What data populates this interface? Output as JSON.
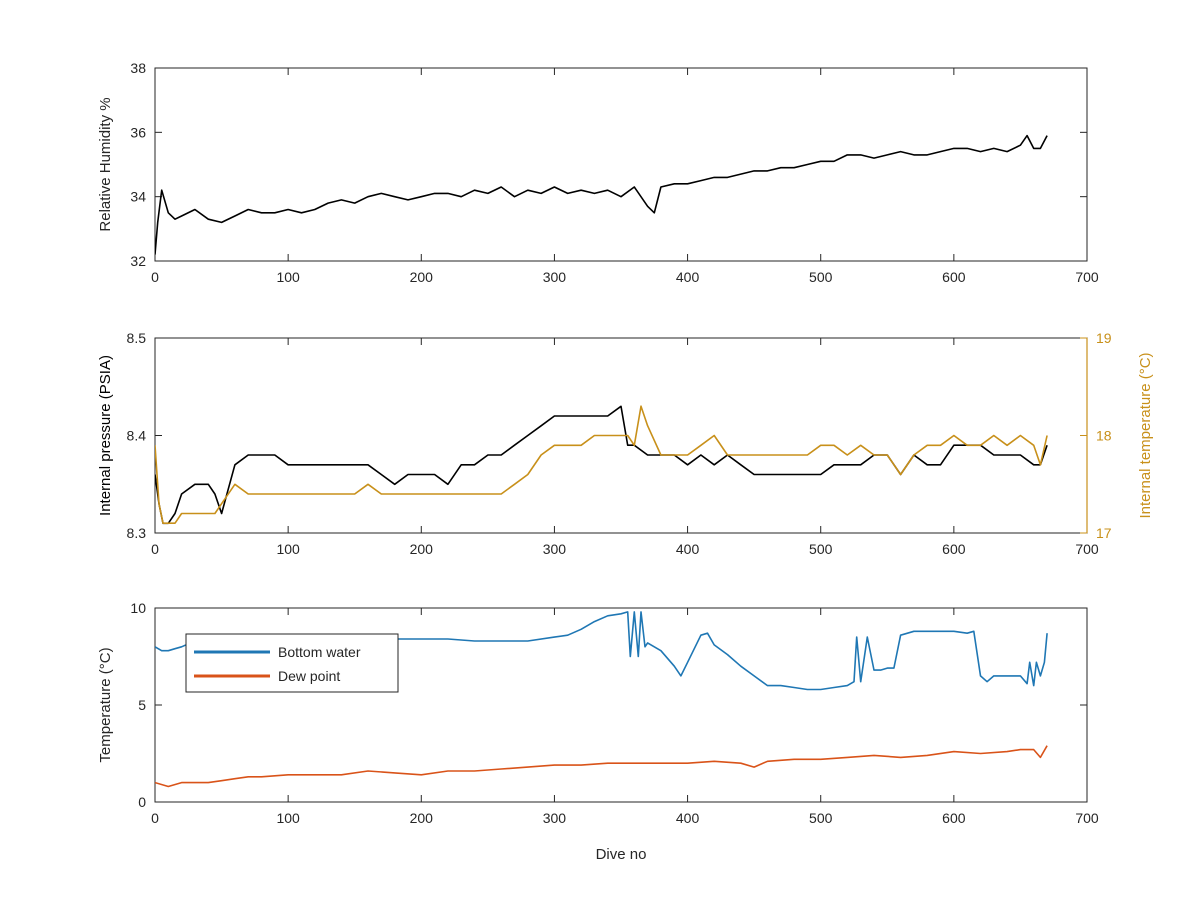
{
  "chart_data": [
    {
      "type": "line",
      "panel": "top",
      "xlabel": "",
      "ylabel": "Relative Humidity %",
      "xlim": [
        0,
        700
      ],
      "ylim": [
        32,
        38
      ],
      "xticks": [
        0,
        100,
        200,
        300,
        400,
        500,
        600,
        700
      ],
      "yticks": [
        32,
        34,
        36,
        38
      ],
      "series": [
        {
          "name": "",
          "color": "#000000",
          "x": [
            0,
            2,
            5,
            10,
            15,
            20,
            30,
            40,
            50,
            60,
            70,
            80,
            90,
            100,
            110,
            120,
            130,
            140,
            150,
            160,
            170,
            180,
            190,
            200,
            210,
            220,
            230,
            240,
            250,
            260,
            270,
            280,
            290,
            300,
            310,
            320,
            330,
            340,
            350,
            360,
            370,
            375,
            380,
            390,
            400,
            410,
            420,
            430,
            440,
            450,
            460,
            470,
            480,
            490,
            500,
            510,
            520,
            530,
            540,
            550,
            560,
            570,
            580,
            590,
            600,
            610,
            620,
            630,
            640,
            650,
            655,
            660,
            665,
            670
          ],
          "y": [
            32.2,
            33.2,
            34.2,
            33.5,
            33.3,
            33.4,
            33.6,
            33.3,
            33.2,
            33.4,
            33.6,
            33.5,
            33.5,
            33.6,
            33.5,
            33.6,
            33.8,
            33.9,
            33.8,
            34.0,
            34.1,
            34.0,
            33.9,
            34.0,
            34.1,
            34.1,
            34.0,
            34.2,
            34.1,
            34.3,
            34.0,
            34.2,
            34.1,
            34.3,
            34.1,
            34.2,
            34.1,
            34.2,
            34.0,
            34.3,
            33.7,
            33.5,
            34.3,
            34.4,
            34.4,
            34.5,
            34.6,
            34.6,
            34.7,
            34.8,
            34.8,
            34.9,
            34.9,
            35.0,
            35.1,
            35.1,
            35.3,
            35.3,
            35.2,
            35.3,
            35.4,
            35.3,
            35.3,
            35.4,
            35.5,
            35.5,
            35.4,
            35.5,
            35.4,
            35.6,
            35.9,
            35.5,
            35.5,
            35.9
          ]
        }
      ]
    },
    {
      "type": "line",
      "panel": "middle",
      "xlabel": "",
      "ylabel": "Internal pressure (PSIA)",
      "y2label": "Internal temperature (°C)",
      "xlim": [
        0,
        700
      ],
      "ylim": [
        8.3,
        8.5
      ],
      "y2lim": [
        17,
        19
      ],
      "xticks": [
        0,
        100,
        200,
        300,
        400,
        500,
        600,
        700
      ],
      "yticks": [
        "8.3",
        "8.4",
        "8.5"
      ],
      "y2ticks": [
        "17",
        "18",
        "19"
      ],
      "series": [
        {
          "name": "",
          "axis": "left",
          "color": "#000000",
          "x": [
            0,
            3,
            6,
            10,
            15,
            20,
            30,
            40,
            45,
            50,
            60,
            70,
            80,
            90,
            100,
            110,
            120,
            130,
            140,
            150,
            160,
            170,
            180,
            190,
            200,
            210,
            220,
            230,
            240,
            250,
            260,
            270,
            280,
            290,
            300,
            310,
            320,
            330,
            340,
            350,
            355,
            360,
            370,
            380,
            390,
            400,
            410,
            420,
            430,
            440,
            450,
            460,
            470,
            480,
            490,
            500,
            510,
            520,
            530,
            540,
            550,
            560,
            570,
            580,
            590,
            600,
            610,
            620,
            630,
            640,
            650,
            660,
            665,
            670
          ],
          "y": [
            8.36,
            8.33,
            8.31,
            8.31,
            8.32,
            8.34,
            8.35,
            8.35,
            8.34,
            8.32,
            8.37,
            8.38,
            8.38,
            8.38,
            8.37,
            8.37,
            8.37,
            8.37,
            8.37,
            8.37,
            8.37,
            8.36,
            8.35,
            8.36,
            8.36,
            8.36,
            8.35,
            8.37,
            8.37,
            8.38,
            8.38,
            8.39,
            8.4,
            8.41,
            8.42,
            8.42,
            8.42,
            8.42,
            8.42,
            8.43,
            8.39,
            8.39,
            8.38,
            8.38,
            8.38,
            8.37,
            8.38,
            8.37,
            8.38,
            8.37,
            8.36,
            8.36,
            8.36,
            8.36,
            8.36,
            8.36,
            8.37,
            8.37,
            8.37,
            8.38,
            8.38,
            8.36,
            8.38,
            8.37,
            8.37,
            8.39,
            8.39,
            8.39,
            8.38,
            8.38,
            8.38,
            8.37,
            8.37,
            8.39
          ]
        },
        {
          "name": "",
          "axis": "right",
          "color": "#c8901a",
          "x": [
            0,
            3,
            6,
            10,
            15,
            20,
            30,
            40,
            45,
            50,
            60,
            70,
            80,
            90,
            100,
            110,
            120,
            130,
            140,
            150,
            160,
            170,
            180,
            190,
            200,
            210,
            220,
            230,
            240,
            250,
            260,
            270,
            280,
            290,
            300,
            310,
            320,
            330,
            340,
            350,
            355,
            360,
            365,
            370,
            380,
            390,
            400,
            410,
            420,
            430,
            440,
            450,
            460,
            470,
            480,
            490,
            500,
            510,
            520,
            530,
            540,
            550,
            560,
            570,
            580,
            590,
            600,
            610,
            620,
            630,
            640,
            650,
            660,
            665,
            670
          ],
          "y": [
            17.9,
            17.3,
            17.1,
            17.1,
            17.1,
            17.2,
            17.2,
            17.2,
            17.2,
            17.3,
            17.5,
            17.4,
            17.4,
            17.4,
            17.4,
            17.4,
            17.4,
            17.4,
            17.4,
            17.4,
            17.5,
            17.4,
            17.4,
            17.4,
            17.4,
            17.4,
            17.4,
            17.4,
            17.4,
            17.4,
            17.4,
            17.5,
            17.6,
            17.8,
            17.9,
            17.9,
            17.9,
            18.0,
            18.0,
            18.0,
            18.0,
            17.9,
            18.3,
            18.1,
            17.8,
            17.8,
            17.8,
            17.9,
            18.0,
            17.8,
            17.8,
            17.8,
            17.8,
            17.8,
            17.8,
            17.8,
            17.9,
            17.9,
            17.8,
            17.9,
            17.8,
            17.8,
            17.6,
            17.8,
            17.9,
            17.9,
            18.0,
            17.9,
            17.9,
            18.0,
            17.9,
            18.0,
            17.9,
            17.7,
            18.0
          ]
        }
      ]
    },
    {
      "type": "line",
      "panel": "bottom",
      "xlabel": "Dive no",
      "ylabel": "Temperature (°C)",
      "xlim": [
        0,
        700
      ],
      "ylim": [
        0,
        10
      ],
      "xticks": [
        0,
        100,
        200,
        300,
        400,
        500,
        600,
        700
      ],
      "yticks": [
        0,
        5,
        10
      ],
      "legend": "top-left",
      "series": [
        {
          "name": "Bottom water",
          "color": "#1f77b4",
          "x": [
            0,
            5,
            10,
            15,
            20,
            30,
            40,
            50,
            60,
            70,
            80,
            100,
            120,
            140,
            160,
            180,
            200,
            220,
            240,
            260,
            280,
            300,
            310,
            320,
            330,
            340,
            350,
            355,
            357,
            360,
            363,
            365,
            368,
            370,
            380,
            390,
            395,
            400,
            410,
            415,
            420,
            430,
            440,
            450,
            460,
            470,
            480,
            490,
            500,
            510,
            520,
            525,
            527,
            530,
            535,
            540,
            545,
            550,
            555,
            560,
            570,
            580,
            590,
            600,
            610,
            615,
            620,
            625,
            630,
            640,
            650,
            655,
            657,
            660,
            662,
            665,
            668,
            670
          ],
          "y": [
            8.0,
            7.8,
            7.8,
            7.9,
            8.0,
            8.3,
            8.4,
            8.5,
            8.6,
            8.6,
            8.6,
            8.5,
            8.5,
            8.5,
            8.5,
            8.4,
            8.4,
            8.4,
            8.3,
            8.3,
            8.3,
            8.5,
            8.6,
            8.9,
            9.3,
            9.6,
            9.7,
            9.8,
            7.5,
            9.8,
            7.5,
            9.8,
            8.0,
            8.2,
            7.8,
            7.0,
            6.5,
            7.2,
            8.6,
            8.7,
            8.1,
            7.6,
            7.0,
            6.5,
            6.0,
            6.0,
            5.9,
            5.8,
            5.8,
            5.9,
            6.0,
            6.2,
            8.5,
            6.2,
            8.5,
            6.8,
            6.8,
            6.9,
            6.9,
            8.6,
            8.8,
            8.8,
            8.8,
            8.8,
            8.7,
            8.8,
            6.5,
            6.2,
            6.5,
            6.5,
            6.5,
            6.1,
            7.2,
            6.0,
            7.2,
            6.5,
            7.2,
            8.7
          ]
        },
        {
          "name": "Dew point",
          "color": "#d95319",
          "x": [
            0,
            10,
            20,
            30,
            40,
            50,
            60,
            70,
            80,
            100,
            120,
            140,
            160,
            180,
            200,
            220,
            240,
            260,
            280,
            300,
            320,
            340,
            360,
            380,
            400,
            420,
            440,
            450,
            460,
            480,
            500,
            520,
            540,
            560,
            580,
            600,
            620,
            640,
            650,
            660,
            665,
            670
          ],
          "y": [
            1.0,
            0.8,
            1.0,
            1.0,
            1.0,
            1.1,
            1.2,
            1.3,
            1.3,
            1.4,
            1.4,
            1.4,
            1.6,
            1.5,
            1.4,
            1.6,
            1.6,
            1.7,
            1.8,
            1.9,
            1.9,
            2.0,
            2.0,
            2.0,
            2.0,
            2.1,
            2.0,
            1.8,
            2.1,
            2.2,
            2.2,
            2.3,
            2.4,
            2.3,
            2.4,
            2.6,
            2.5,
            2.6,
            2.7,
            2.7,
            2.3,
            2.9
          ]
        }
      ]
    }
  ]
}
